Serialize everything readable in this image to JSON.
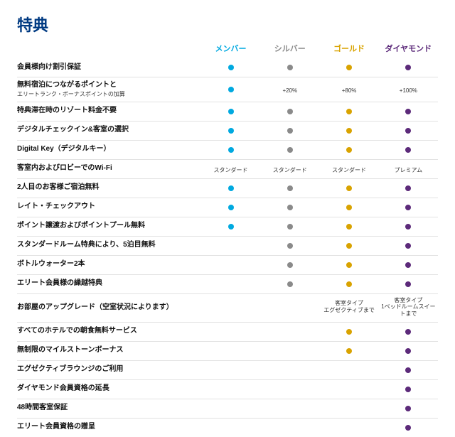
{
  "title": "特典",
  "title_color": "#003a82",
  "tiers": [
    {
      "label": "メンバー",
      "color": "#00a9e0"
    },
    {
      "label": "シルバー",
      "color": "#8a8a8a"
    },
    {
      "label": "ゴールド",
      "color": "#d9a300"
    },
    {
      "label": "ダイヤモンド",
      "color": "#5c2a7a"
    }
  ],
  "benefits": [
    {
      "name": "会員様向け割引保証",
      "cells": [
        "dot",
        "dot",
        "dot",
        "dot"
      ]
    },
    {
      "name": "無料宿泊につながるポイントと",
      "sub": "エリートランク・ボーナスポイントの加算",
      "cells": [
        "dot",
        "+20%",
        "+80%",
        "+100%"
      ]
    },
    {
      "name": "特典滞在時のリゾート料金不要",
      "cells": [
        "dot",
        "dot",
        "dot",
        "dot"
      ]
    },
    {
      "name": "デジタルチェックイン&客室の選択",
      "cells": [
        "dot",
        "dot",
        "dot",
        "dot"
      ]
    },
    {
      "name": "Digital Key（デジタルキー）",
      "cells": [
        "dot",
        "dot",
        "dot",
        "dot"
      ]
    },
    {
      "name": "客室内およびロビーでのWi-Fi",
      "cells": [
        "スタンダード",
        "スタンダード",
        "スタンダード",
        "プレミアム"
      ]
    },
    {
      "name": "2人目のお客様ご宿泊無料",
      "cells": [
        "dot",
        "dot",
        "dot",
        "dot"
      ]
    },
    {
      "name": "レイト・チェックアウト",
      "cells": [
        "dot",
        "dot",
        "dot",
        "dot"
      ]
    },
    {
      "name": "ポイント譲渡およびポイントプール無料",
      "cells": [
        "dot",
        "dot",
        "dot",
        "dot"
      ]
    },
    {
      "name": "スタンダードルーム特典により、5泊目無料",
      "cells": [
        "",
        "dot",
        "dot",
        "dot"
      ]
    },
    {
      "name": "ボトルウォーター2本",
      "cells": [
        "",
        "dot",
        "dot",
        "dot"
      ]
    },
    {
      "name": "エリート会員様の繰越特典",
      "cells": [
        "",
        "dot",
        "dot",
        "dot"
      ]
    },
    {
      "name": "お部屋のアップグレード（空室状況によります）",
      "cells": [
        "",
        "",
        "客室タイプ\nエグゼクティブまで",
        "客室タイプ\n1ベッドルームスイートまで"
      ]
    },
    {
      "name": "すべてのホテルでの朝食無料サービス",
      "cells": [
        "",
        "",
        "dot",
        "dot"
      ]
    },
    {
      "name": "無制限のマイルストーンボーナス",
      "cells": [
        "",
        "",
        "dot",
        "dot"
      ]
    },
    {
      "name": "エグゼクティブラウンジのご利用",
      "cells": [
        "",
        "",
        "",
        "dot"
      ]
    },
    {
      "name": "ダイヤモンド会員資格の延長",
      "cells": [
        "",
        "",
        "",
        "dot"
      ]
    },
    {
      "name": "48時間客室保証",
      "cells": [
        "",
        "",
        "",
        "dot"
      ]
    },
    {
      "name": "エリート会員資格の贈呈",
      "cells": [
        "",
        "",
        "",
        "dot"
      ]
    }
  ]
}
